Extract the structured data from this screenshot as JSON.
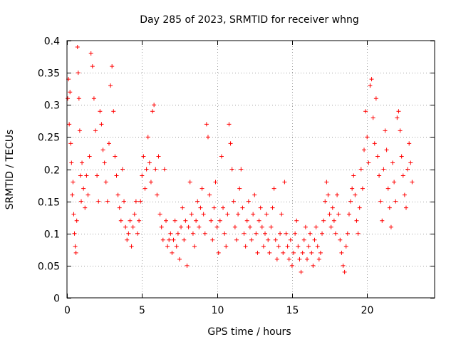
{
  "chart_data": {
    "type": "scatter",
    "title": "Day 285 of 2023, SRMTID for receiver whng",
    "xlabel": "GPS time / hours",
    "ylabel": "SRMTID / TECUs",
    "xlim": [
      0,
      24.5
    ],
    "ylim": [
      0,
      0.4
    ],
    "xticks": [
      0,
      5,
      10,
      15,
      20
    ],
    "xtick_labels": [
      "0",
      "5",
      "10",
      "15",
      "20"
    ],
    "yticks": [
      0,
      0.05,
      0.1,
      0.15,
      0.2,
      0.25,
      0.3,
      0.35,
      0.4
    ],
    "ytick_labels": [
      "0",
      "0.05",
      "0.1",
      "0.15",
      "0.2",
      "0.25",
      "0.3",
      "0.35",
      "0.4"
    ],
    "grid": true,
    "marker": "+",
    "color": "#ff0000",
    "series": [
      {
        "name": "SRMTID",
        "points": [
          [
            0.05,
            0.31
          ],
          [
            0.1,
            0.34
          ],
          [
            0.15,
            0.27
          ],
          [
            0.2,
            0.32
          ],
          [
            0.25,
            0.24
          ],
          [
            0.3,
            0.21
          ],
          [
            0.35,
            0.16
          ],
          [
            0.4,
            0.18
          ],
          [
            0.45,
            0.13
          ],
          [
            0.5,
            0.1
          ],
          [
            0.55,
            0.08
          ],
          [
            0.6,
            0.07
          ],
          [
            0.65,
            0.12
          ],
          [
            0.7,
            0.39
          ],
          [
            0.75,
            0.35
          ],
          [
            0.8,
            0.31
          ],
          [
            0.85,
            0.26
          ],
          [
            0.9,
            0.19
          ],
          [
            0.95,
            0.15
          ],
          [
            1.0,
            0.21
          ],
          [
            1.1,
            0.17
          ],
          [
            1.2,
            0.14
          ],
          [
            1.3,
            0.19
          ],
          [
            1.4,
            0.16
          ],
          [
            1.5,
            0.22
          ],
          [
            1.6,
            0.38
          ],
          [
            1.7,
            0.36
          ],
          [
            1.8,
            0.31
          ],
          [
            1.9,
            0.26
          ],
          [
            2.0,
            0.19
          ],
          [
            2.1,
            0.15
          ],
          [
            2.2,
            0.29
          ],
          [
            2.3,
            0.27
          ],
          [
            2.4,
            0.23
          ],
          [
            2.5,
            0.21
          ],
          [
            2.6,
            0.18
          ],
          [
            2.7,
            0.15
          ],
          [
            2.8,
            0.24
          ],
          [
            2.9,
            0.33
          ],
          [
            3.0,
            0.36
          ],
          [
            3.1,
            0.29
          ],
          [
            3.2,
            0.22
          ],
          [
            3.3,
            0.19
          ],
          [
            3.4,
            0.16
          ],
          [
            3.5,
            0.14
          ],
          [
            3.6,
            0.12
          ],
          [
            3.7,
            0.2
          ],
          [
            3.8,
            0.15
          ],
          [
            3.9,
            0.11
          ],
          [
            4.0,
            0.09
          ],
          [
            4.1,
            0.1
          ],
          [
            4.2,
            0.12
          ],
          [
            4.3,
            0.08
          ],
          [
            4.4,
            0.11
          ],
          [
            4.5,
            0.13
          ],
          [
            4.6,
            0.15
          ],
          [
            4.7,
            0.1
          ],
          [
            4.8,
            0.12
          ],
          [
            4.9,
            0.15
          ],
          [
            5.0,
            0.19
          ],
          [
            5.1,
            0.22
          ],
          [
            5.2,
            0.17
          ],
          [
            5.3,
            0.2
          ],
          [
            5.4,
            0.25
          ],
          [
            5.5,
            0.21
          ],
          [
            5.6,
            0.18
          ],
          [
            5.7,
            0.29
          ],
          [
            5.8,
            0.3
          ],
          [
            5.9,
            0.2
          ],
          [
            6.0,
            0.16
          ],
          [
            6.1,
            0.22
          ],
          [
            6.2,
            0.13
          ],
          [
            6.3,
            0.11
          ],
          [
            6.4,
            0.09
          ],
          [
            6.5,
            0.2
          ],
          [
            6.6,
            0.12
          ],
          [
            6.7,
            0.08
          ],
          [
            6.8,
            0.09
          ],
          [
            6.9,
            0.1
          ],
          [
            7.0,
            0.07
          ],
          [
            7.1,
            0.09
          ],
          [
            7.2,
            0.12
          ],
          [
            7.3,
            0.08
          ],
          [
            7.4,
            0.1
          ],
          [
            7.5,
            0.06
          ],
          [
            7.6,
            0.11
          ],
          [
            7.7,
            0.14
          ],
          [
            7.8,
            0.09
          ],
          [
            7.9,
            0.12
          ],
          [
            8.0,
            0.05
          ],
          [
            8.1,
            0.11
          ],
          [
            8.2,
            0.18
          ],
          [
            8.3,
            0.13
          ],
          [
            8.4,
            0.1
          ],
          [
            8.5,
            0.08
          ],
          [
            8.6,
            0.12
          ],
          [
            8.7,
            0.15
          ],
          [
            8.8,
            0.11
          ],
          [
            8.9,
            0.14
          ],
          [
            9.0,
            0.17
          ],
          [
            9.1,
            0.13
          ],
          [
            9.2,
            0.1
          ],
          [
            9.3,
            0.27
          ],
          [
            9.4,
            0.25
          ],
          [
            9.5,
            0.16
          ],
          [
            9.6,
            0.12
          ],
          [
            9.7,
            0.09
          ],
          [
            9.8,
            0.14
          ],
          [
            9.9,
            0.18
          ],
          [
            10.0,
            0.11
          ],
          [
            10.1,
            0.07
          ],
          [
            10.2,
            0.12
          ],
          [
            10.3,
            0.22
          ],
          [
            10.4,
            0.14
          ],
          [
            10.5,
            0.1
          ],
          [
            10.6,
            0.08
          ],
          [
            10.7,
            0.13
          ],
          [
            10.8,
            0.27
          ],
          [
            10.9,
            0.24
          ],
          [
            11.0,
            0.2
          ],
          [
            11.1,
            0.15
          ],
          [
            11.2,
            0.11
          ],
          [
            11.3,
            0.09
          ],
          [
            11.4,
            0.13
          ],
          [
            11.5,
            0.17
          ],
          [
            11.6,
            0.2
          ],
          [
            11.7,
            0.14
          ],
          [
            11.8,
            0.1
          ],
          [
            11.9,
            0.08
          ],
          [
            12.0,
            0.12
          ],
          [
            12.1,
            0.15
          ],
          [
            12.2,
            0.11
          ],
          [
            12.3,
            0.09
          ],
          [
            12.4,
            0.13
          ],
          [
            12.5,
            0.16
          ],
          [
            12.6,
            0.1
          ],
          [
            12.7,
            0.07
          ],
          [
            12.8,
            0.12
          ],
          [
            12.9,
            0.14
          ],
          [
            13.0,
            0.11
          ],
          [
            13.1,
            0.08
          ],
          [
            13.2,
            0.1
          ],
          [
            13.3,
            0.13
          ],
          [
            13.4,
            0.09
          ],
          [
            13.5,
            0.07
          ],
          [
            13.6,
            0.11
          ],
          [
            13.7,
            0.14
          ],
          [
            13.8,
            0.17
          ],
          [
            13.9,
            0.09
          ],
          [
            14.0,
            0.06
          ],
          [
            14.1,
            0.08
          ],
          [
            14.2,
            0.1
          ],
          [
            14.3,
            0.13
          ],
          [
            14.4,
            0.07
          ],
          [
            14.5,
            0.18
          ],
          [
            14.6,
            0.1
          ],
          [
            14.7,
            0.08
          ],
          [
            14.8,
            0.06
          ],
          [
            14.9,
            0.09
          ],
          [
            15.0,
            0.05
          ],
          [
            15.1,
            0.07
          ],
          [
            15.2,
            0.1
          ],
          [
            15.3,
            0.12
          ],
          [
            15.4,
            0.08
          ],
          [
            15.5,
            0.06
          ],
          [
            15.6,
            0.04
          ],
          [
            15.7,
            0.07
          ],
          [
            15.8,
            0.09
          ],
          [
            15.9,
            0.11
          ],
          [
            16.0,
            0.06
          ],
          [
            16.1,
            0.08
          ],
          [
            16.2,
            0.1
          ],
          [
            16.3,
            0.07
          ],
          [
            16.4,
            0.05
          ],
          [
            16.5,
            0.09
          ],
          [
            16.6,
            0.11
          ],
          [
            16.7,
            0.08
          ],
          [
            16.8,
            0.06
          ],
          [
            16.9,
            0.07
          ],
          [
            17.0,
            0.1
          ],
          [
            17.1,
            0.12
          ],
          [
            17.2,
            0.15
          ],
          [
            17.3,
            0.18
          ],
          [
            17.4,
            0.16
          ],
          [
            17.5,
            0.13
          ],
          [
            17.6,
            0.11
          ],
          [
            17.7,
            0.14
          ],
          [
            17.8,
            0.12
          ],
          [
            17.9,
            0.1
          ],
          [
            18.0,
            0.16
          ],
          [
            18.1,
            0.13
          ],
          [
            18.2,
            0.09
          ],
          [
            18.3,
            0.07
          ],
          [
            18.4,
            0.05
          ],
          [
            18.5,
            0.04
          ],
          [
            18.6,
            0.08
          ],
          [
            18.7,
            0.1
          ],
          [
            18.8,
            0.13
          ],
          [
            18.9,
            0.15
          ],
          [
            19.0,
            0.17
          ],
          [
            19.1,
            0.19
          ],
          [
            19.2,
            0.16
          ],
          [
            19.3,
            0.12
          ],
          [
            19.4,
            0.1
          ],
          [
            19.5,
            0.14
          ],
          [
            19.6,
            0.2
          ],
          [
            19.7,
            0.17
          ],
          [
            19.8,
            0.23
          ],
          [
            19.9,
            0.29
          ],
          [
            20.0,
            0.25
          ],
          [
            20.1,
            0.21
          ],
          [
            20.2,
            0.33
          ],
          [
            20.3,
            0.34
          ],
          [
            20.4,
            0.28
          ],
          [
            20.5,
            0.24
          ],
          [
            20.6,
            0.31
          ],
          [
            20.7,
            0.22
          ],
          [
            20.8,
            0.19
          ],
          [
            20.9,
            0.15
          ],
          [
            21.0,
            0.12
          ],
          [
            21.1,
            0.2
          ],
          [
            21.2,
            0.26
          ],
          [
            21.3,
            0.23
          ],
          [
            21.4,
            0.17
          ],
          [
            21.5,
            0.14
          ],
          [
            21.6,
            0.11
          ],
          [
            21.7,
            0.21
          ],
          [
            21.8,
            0.18
          ],
          [
            21.9,
            0.15
          ],
          [
            22.0,
            0.28
          ],
          [
            22.1,
            0.29
          ],
          [
            22.2,
            0.26
          ],
          [
            22.3,
            0.22
          ],
          [
            22.4,
            0.19
          ],
          [
            22.5,
            0.16
          ],
          [
            22.6,
            0.14
          ],
          [
            22.7,
            0.2
          ],
          [
            22.8,
            0.24
          ],
          [
            22.9,
            0.21
          ],
          [
            23.0,
            0.18
          ]
        ]
      }
    ]
  }
}
